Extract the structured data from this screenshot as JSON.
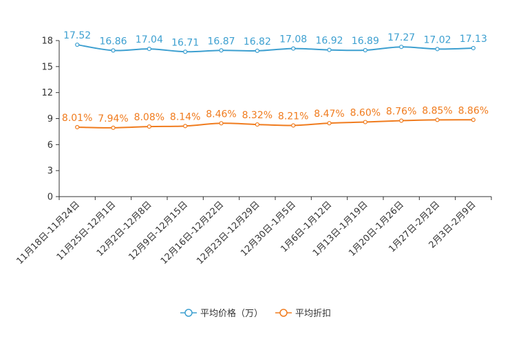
{
  "chart_data": {
    "type": "line",
    "title": "",
    "xlabel": "",
    "ylabel": "",
    "categories": [
      "11月18日-11月24日",
      "11月25日-12月1日",
      "12月2日-12月8日",
      "12月9日-12月15日",
      "12月16日-12月22日",
      "12月23日-12月29日",
      "12月30日-1月5日",
      "1月6日-1月12日",
      "1月13日-1月19日",
      "1月20日-1月26日",
      "1月27日-2月2日",
      "2月3日-2月9日"
    ],
    "ylim": [
      0,
      18
    ],
    "yticks": [
      "0",
      "3",
      "6",
      "9",
      "12",
      "15",
      "18"
    ],
    "grid": false,
    "legend_position": "bottom",
    "series": [
      {
        "name": "平均价格（万）",
        "color": "#3c9fd0",
        "values": [
          17.52,
          16.86,
          17.04,
          16.71,
          16.87,
          16.82,
          17.08,
          16.92,
          16.89,
          17.27,
          17.02,
          17.13
        ],
        "labels": [
          "17.52",
          "16.86",
          "17.04",
          "16.71",
          "16.87",
          "16.82",
          "17.08",
          "16.92",
          "16.89",
          "17.27",
          "17.02",
          "17.13"
        ]
      },
      {
        "name": "平均折扣",
        "color": "#f07b1d",
        "values": [
          8.01,
          7.94,
          8.08,
          8.14,
          8.46,
          8.32,
          8.21,
          8.47,
          8.6,
          8.76,
          8.85,
          8.86
        ],
        "labels": [
          "8.01%",
          "7.94%",
          "8.08%",
          "8.14%",
          "8.46%",
          "8.32%",
          "8.21%",
          "8.47%",
          "8.60%",
          "8.76%",
          "8.85%",
          "8.86%"
        ]
      }
    ]
  }
}
